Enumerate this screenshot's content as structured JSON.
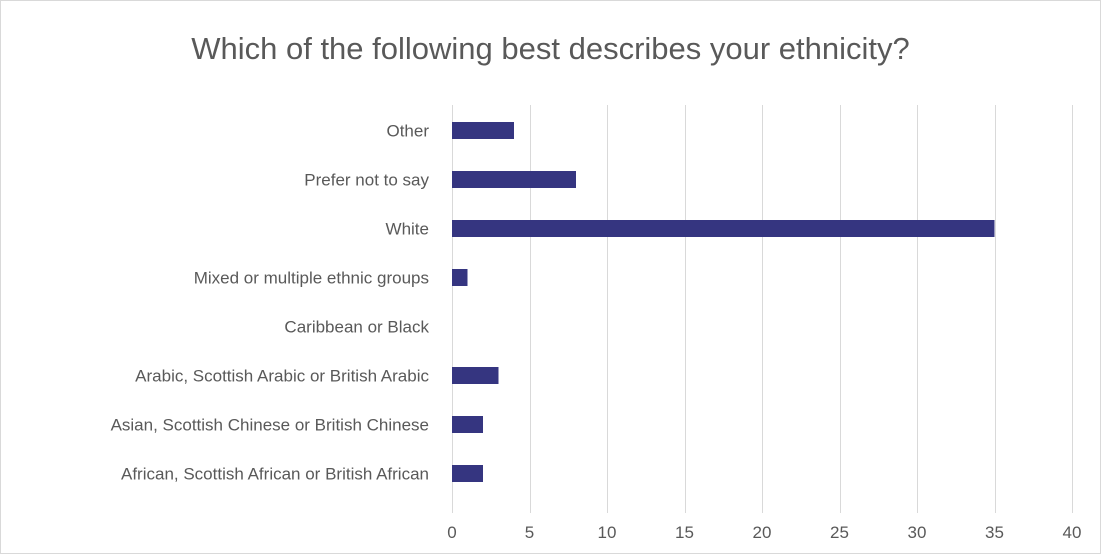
{
  "chart_data": {
    "type": "bar",
    "orientation": "horizontal",
    "title": "Which of the following best describes your ethnicity?",
    "categories": [
      "Other",
      "Prefer not to say",
      "White",
      "Mixed or multiple ethnic groups",
      "Caribbean or Black",
      "Arabic, Scottish Arabic or British Arabic",
      "Asian, Scottish Chinese or British Chinese",
      "African, Scottish African or British African"
    ],
    "values": [
      4,
      8,
      35,
      1,
      0,
      3,
      2,
      2
    ],
    "xlim": [
      0,
      40
    ],
    "x_ticks": [
      0,
      5,
      10,
      15,
      20,
      25,
      30,
      35,
      40
    ],
    "grid": true,
    "legend": "none",
    "bar_color": "#353580",
    "grid_color": "#d9d9d9"
  }
}
